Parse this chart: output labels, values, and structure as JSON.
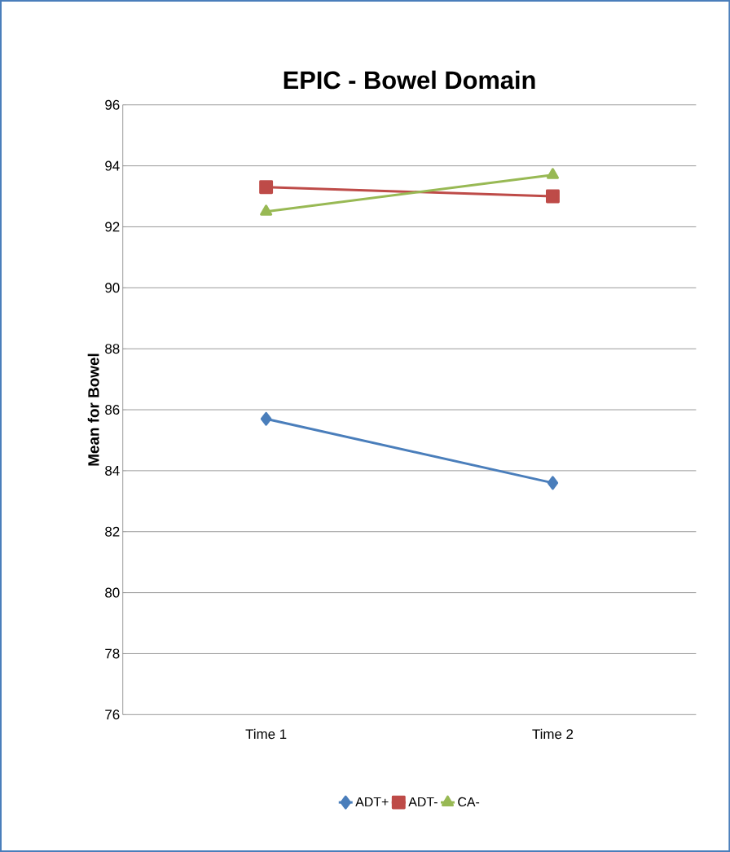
{
  "chart_data": {
    "type": "line",
    "title": "EPIC - Bowel Domain",
    "ylabel": "Mean for Bowel",
    "categories": [
      "Time 1",
      "Time 2"
    ],
    "series": [
      {
        "name": "ADT+",
        "color": "#4a7ebb",
        "marker": "diamond",
        "values": [
          85.7,
          83.6
        ]
      },
      {
        "name": "ADT-",
        "color": "#be4b48",
        "marker": "square",
        "values": [
          93.3,
          93.0
        ]
      },
      {
        "name": "CA-",
        "color": "#98b954",
        "marker": "triangle",
        "values": [
          92.5,
          93.7
        ]
      }
    ],
    "ylim": [
      76,
      96
    ],
    "yticks": [
      76,
      78,
      80,
      82,
      84,
      86,
      88,
      90,
      92,
      94,
      96
    ],
    "grid": "y",
    "legend": "bottom"
  }
}
